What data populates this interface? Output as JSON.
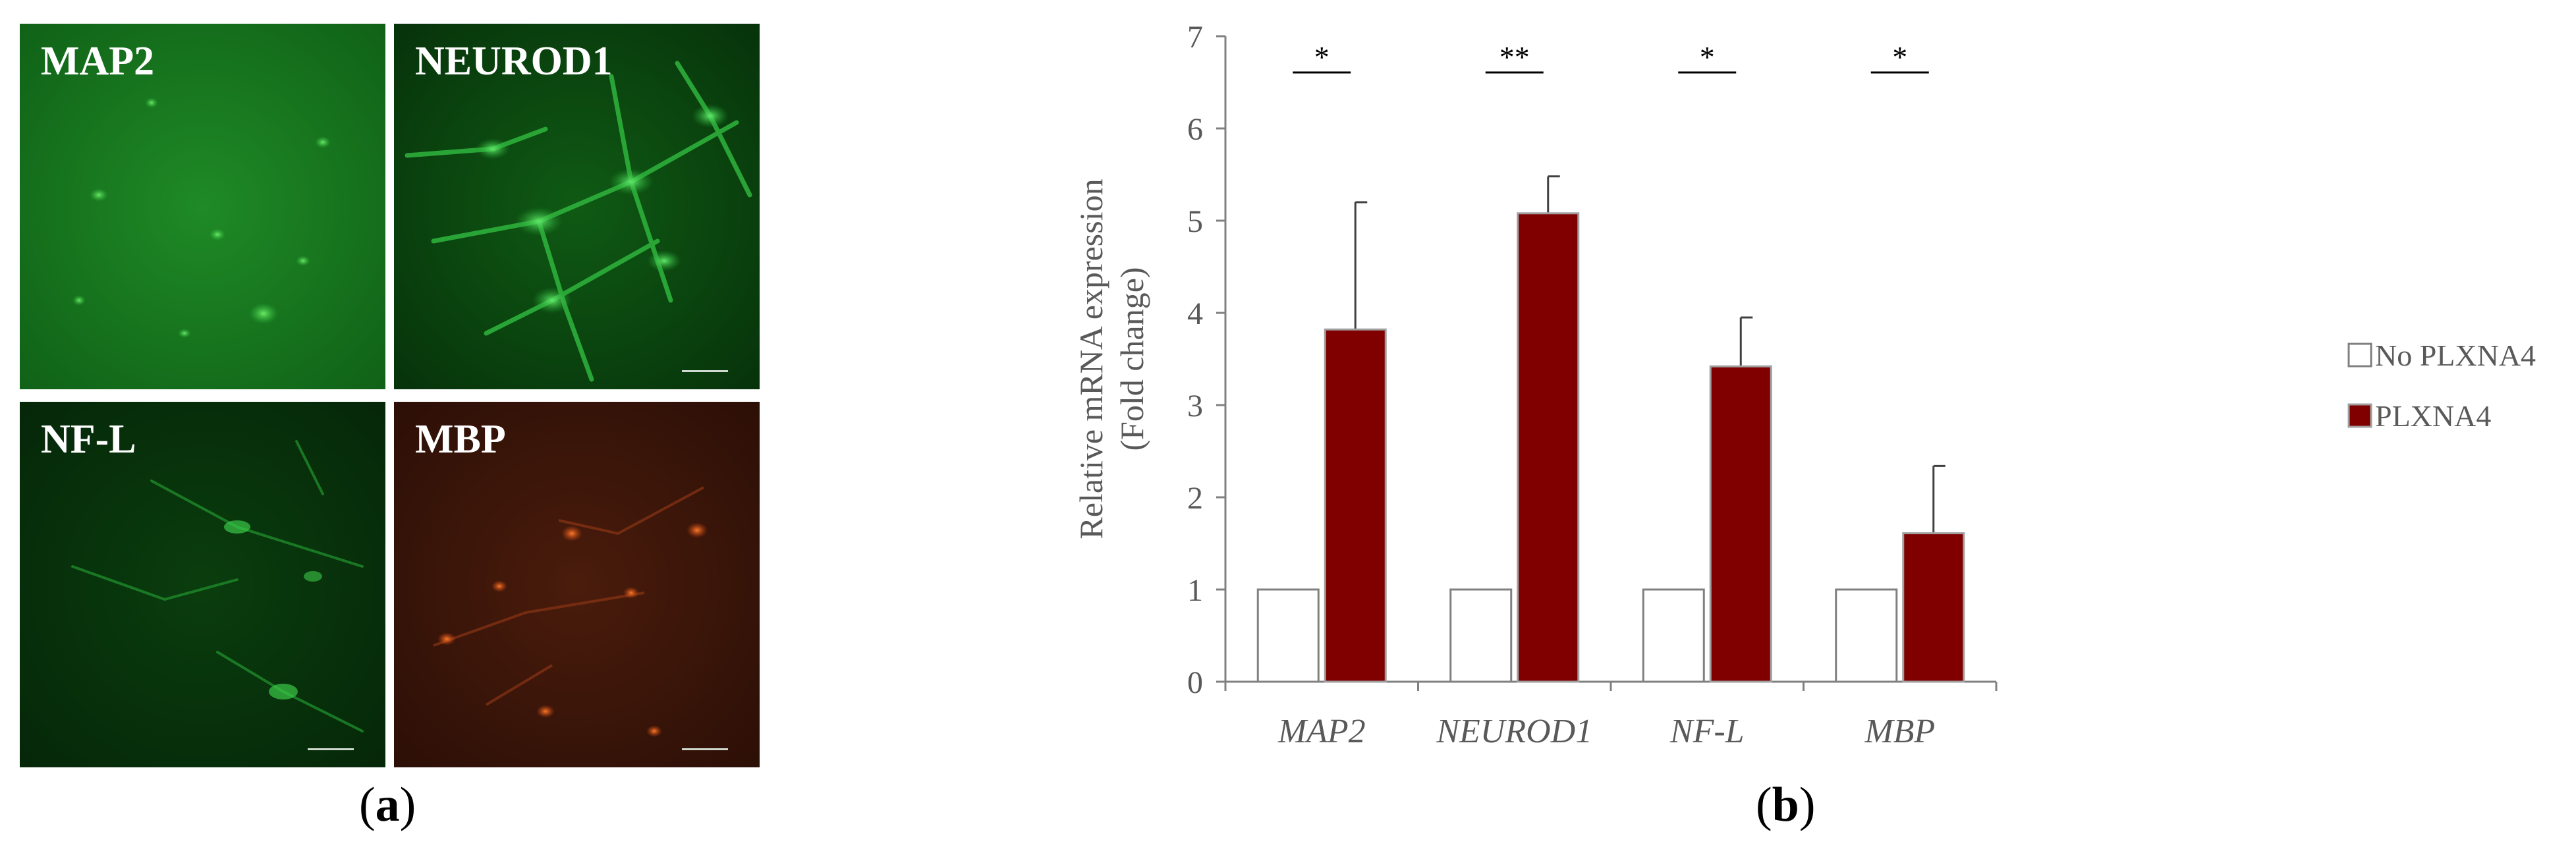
{
  "panel_a": {
    "images": [
      {
        "label": "MAP2",
        "stain": "green"
      },
      {
        "label": "NEUROD1",
        "stain": "green"
      },
      {
        "label": "NF-L",
        "stain": "green"
      },
      {
        "label": "MBP",
        "stain": "red"
      }
    ],
    "letter_open": "(",
    "letter": "a",
    "letter_close": ")"
  },
  "panel_b": {
    "letter_open": "(",
    "letter": "b",
    "letter_close": ")"
  },
  "colors": {
    "plxna4_fill": "#800000",
    "plxna4_edge": "#a0a0a0",
    "control_fill": "#ffffff",
    "control_edge": "#808080",
    "axis": "#808080",
    "text": "#595959"
  },
  "chart_data": {
    "type": "bar",
    "title": "",
    "xlabel": "",
    "ylabel": "Relative mRNA expression\n(Fold change)",
    "ylim": [
      0,
      7
    ],
    "yticks": [
      0,
      1,
      2,
      3,
      4,
      5,
      6,
      7
    ],
    "grid": false,
    "legend_position": "right",
    "categories": [
      "MAP2",
      "NEUROD1",
      "NF-L",
      "MBP"
    ],
    "series": [
      {
        "name": "No PLXNA4",
        "values": [
          1,
          1,
          1,
          1
        ],
        "errors": [
          0,
          0,
          0,
          0
        ]
      },
      {
        "name": "PLXNA4",
        "values": [
          3.82,
          5.08,
          3.42,
          1.61
        ],
        "errors": [
          1.38,
          0.4,
          0.53,
          0.73
        ]
      }
    ],
    "significance": [
      "*",
      "**",
      "*",
      "*"
    ]
  }
}
